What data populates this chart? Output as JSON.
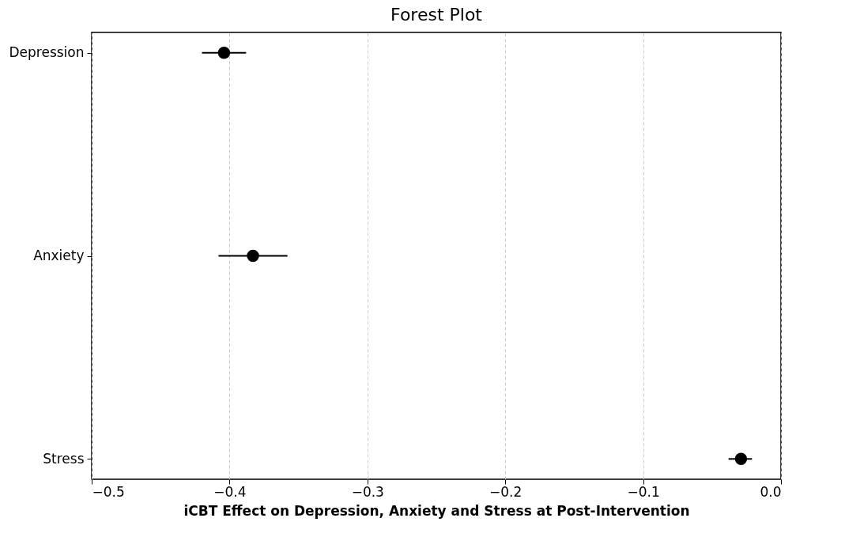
{
  "chart_data": {
    "type": "scatter",
    "title": "Forest Plot",
    "xlabel": "iCBT Effect on Depression, Anxiety and Stress at Post-Intervention",
    "orientation": "horizontal",
    "categories": [
      "Depression",
      "Anxiety",
      "Stress"
    ],
    "values": [
      -0.404,
      -0.383,
      -0.029
    ],
    "errors": [
      [
        -0.42,
        -0.388
      ],
      [
        -0.408,
        -0.358
      ],
      [
        -0.038,
        -0.021
      ]
    ],
    "color": "#000000",
    "marker": "circle",
    "grid": "x",
    "xlim": [
      -0.5,
      0
    ],
    "xticks": [
      {
        "value": -0.5,
        "label": "−0.5"
      },
      {
        "value": -0.4,
        "label": "−0.4"
      },
      {
        "value": -0.3,
        "label": "−0.3"
      },
      {
        "value": -0.2,
        "label": "−0.2"
      },
      {
        "value": -0.1,
        "label": "−0.1"
      },
      {
        "value": 0,
        "label": "0.0"
      }
    ]
  }
}
